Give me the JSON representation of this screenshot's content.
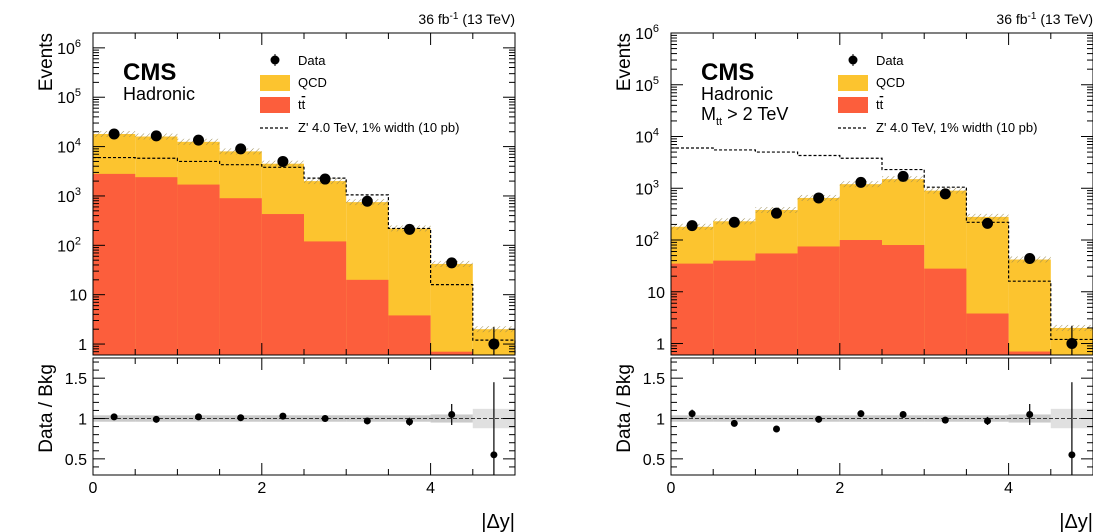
{
  "colors": {
    "qcd": "#fcc42f",
    "ttbar": "#fc5e3c",
    "data": "#000000",
    "unc": "#bdbdbd"
  },
  "chart_data": [
    {
      "type": "bar",
      "panel": "left",
      "lumi_text": "36 fb",
      "lumi_sup": "-1",
      "lumi_energy": "(13 TeV)",
      "cms_label": "CMS",
      "category_lines": [
        "Hadronic"
      ],
      "upper_ylabel": "Events",
      "lower_ylabel": "Data / Bkg",
      "xlabel": "|Δy|",
      "x_edges": [
        0,
        0.5,
        1,
        1.5,
        2,
        2.5,
        3,
        3.5,
        4,
        4.5,
        5
      ],
      "xlim": [
        0,
        5
      ],
      "xticks": [
        "0",
        "2",
        "4"
      ],
      "yscale": "log",
      "ylim": [
        0.6,
        2000000
      ],
      "yticks": [
        "1",
        "10",
        "10^2",
        "10^3",
        "10^4",
        "10^5",
        "10^6"
      ],
      "legend": {
        "data": "Data",
        "qcd": "QCD",
        "ttbar": "t",
        "ttbar_bar": "t",
        "signal": "Z' 4.0 TeV, 1% width (10 pb)"
      },
      "series": [
        {
          "name": "QCD",
          "stack_top": [
            18000,
            16000,
            12500,
            8000,
            4500,
            2000,
            750,
            220,
            42,
            2
          ]
        },
        {
          "name": "t̅t",
          "values": [
            2800,
            2400,
            1700,
            900,
            430,
            120,
            20,
            3.8,
            0.7,
            0.6
          ]
        },
        {
          "name": "Z' 4.0 TeV, 1% width (10 pb)",
          "values": [
            6000,
            5800,
            5000,
            4300,
            3800,
            2300,
            1050,
            220,
            16,
            1.2
          ]
        },
        {
          "name": "Data",
          "x": [
            0.25,
            0.75,
            1.25,
            1.75,
            2.25,
            2.75,
            3.25,
            3.75,
            4.25,
            4.75
          ],
          "values": [
            18000,
            16500,
            13500,
            9000,
            5000,
            2200,
            780,
            210,
            44,
            1
          ],
          "err_low": [
            0,
            0,
            0,
            0,
            0,
            0,
            0,
            0,
            0,
            0.4
          ],
          "err_high": [
            0,
            0,
            0,
            0,
            0,
            0,
            0,
            0,
            0,
            1.2
          ]
        }
      ],
      "ratio": {
        "ylim": [
          0.3,
          1.75
        ],
        "yticks": [
          "0.5",
          "1",
          "1.5"
        ],
        "values": [
          1.02,
          0.99,
          1.02,
          1.01,
          1.03,
          1.0,
          0.97,
          0.96,
          1.05,
          0.55
        ],
        "err": [
          0.01,
          0.01,
          0.01,
          0.02,
          0.02,
          0.03,
          0.03,
          0.05,
          0.13,
          0.9
        ],
        "band": [
          0.04,
          0.04,
          0.04,
          0.04,
          0.04,
          0.04,
          0.04,
          0.04,
          0.05,
          0.12
        ]
      }
    },
    {
      "type": "bar",
      "panel": "right",
      "lumi_text": "36 fb",
      "lumi_sup": "-1",
      "lumi_energy": "(13 TeV)",
      "cms_label": "CMS",
      "category_lines": [
        "Hadronic"
      ],
      "mass_cut_prefix": "M",
      "mass_cut_sub": "t",
      "mass_cut_sub_bar": "t",
      "mass_cut_suffix": " > 2 TeV",
      "upper_ylabel": "Events",
      "lower_ylabel": "Data / Bkg",
      "xlabel": "|Δy|",
      "x_edges": [
        0,
        0.5,
        1,
        1.5,
        2,
        2.5,
        3,
        3.5,
        4,
        4.5,
        5
      ],
      "xlim": [
        0,
        5
      ],
      "xticks": [
        "0",
        "2",
        "4"
      ],
      "yscale": "log",
      "ylim": [
        0.6,
        1000000
      ],
      "yticks": [
        "1",
        "10",
        "10^2",
        "10^3",
        "10^4",
        "10^5",
        "10^6"
      ],
      "legend": {
        "data": "Data",
        "qcd": "QCD",
        "ttbar": "t",
        "ttbar_bar": "t",
        "signal": "Z' 4.0 TeV, 1% width (10 pb)"
      },
      "series": [
        {
          "name": "QCD",
          "stack_top": [
            180,
            230,
            380,
            650,
            1200,
            1500,
            900,
            280,
            42,
            2
          ]
        },
        {
          "name": "t̅t",
          "values": [
            35,
            40,
            55,
            75,
            100,
            80,
            28,
            3.8,
            0.7,
            0.6
          ]
        },
        {
          "name": "Z' 4.0 TeV, 1% width (10 pb)",
          "values": [
            6000,
            5500,
            5000,
            4300,
            3800,
            2300,
            1050,
            220,
            16,
            1.2
          ]
        },
        {
          "name": "Data",
          "x": [
            0.25,
            0.75,
            1.25,
            1.75,
            2.25,
            2.75,
            3.25,
            3.75,
            4.25,
            4.75
          ],
          "values": [
            190,
            220,
            330,
            650,
            1300,
            1700,
            780,
            210,
            44,
            1
          ],
          "err_low": [
            0,
            0,
            0,
            0,
            0,
            0,
            0,
            0,
            0,
            0.4
          ],
          "err_high": [
            0,
            0,
            0,
            0,
            0,
            0,
            0,
            0,
            0,
            1.2
          ]
        }
      ],
      "ratio": {
        "ylim": [
          0.3,
          1.75
        ],
        "yticks": [
          "0.5",
          "1",
          "1.5"
        ],
        "values": [
          1.06,
          0.94,
          0.87,
          0.99,
          1.06,
          1.05,
          0.98,
          0.97,
          1.05,
          0.55
        ],
        "err": [
          0.05,
          0.04,
          0.03,
          0.02,
          0.02,
          0.02,
          0.03,
          0.05,
          0.13,
          0.9
        ],
        "band": [
          0.04,
          0.04,
          0.04,
          0.04,
          0.04,
          0.04,
          0.04,
          0.04,
          0.05,
          0.12
        ]
      }
    }
  ]
}
